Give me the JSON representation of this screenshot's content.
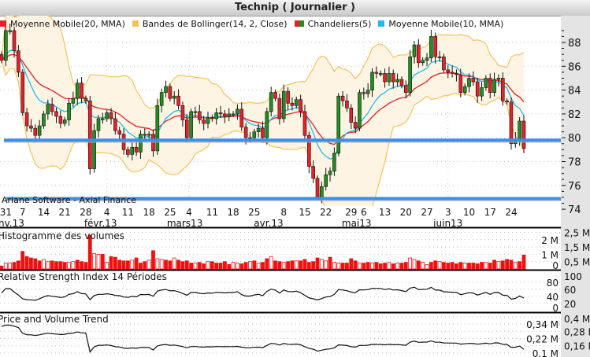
{
  "title": "Technip  ( Journalier )",
  "legend": [
    {
      "label": "Moyenne Mobile(20, MMA)",
      "color": "#e8202a"
    },
    {
      "label": "Bandes de Bollinger(14, 2, Close)",
      "color": "#f8c25a"
    },
    {
      "label": "Chandeliers(5)",
      "color": "#e8202a",
      "color2": "#1f8f1f"
    },
    {
      "label": "Moyenne Mobile(10, MMA)",
      "color": "#22bbee"
    }
  ],
  "watermark": "Ariane Software - Axial Finance",
  "panels": {
    "volume_title": "Histogramme des volumes",
    "rsi_title": "Relative Strength Index 14 Périodes",
    "pvt_title": "Price and Volume Trend"
  },
  "chart_data": {
    "type": "candlestick",
    "title": "Technip  ( Journalier )",
    "price_axis": {
      "range": [
        74,
        89
      ],
      "ticks": [
        "88",
        "86",
        "84",
        "82",
        "80",
        "78",
        "76",
        "74"
      ]
    },
    "closes": [
      86.5,
      89,
      89,
      87.3,
      85.5,
      82.1,
      81,
      80.8,
      80.2,
      81,
      82,
      82.8,
      82.2,
      81.8,
      81.2,
      81.5,
      82.9,
      83.3,
      84.6,
      83.3,
      83.1,
      77.4,
      80.6,
      81.6,
      81.6,
      82.1,
      81.6,
      80.6,
      80.3,
      79,
      78.6,
      79.2,
      78.8,
      80.3,
      80.2,
      80.3,
      78.9,
      82.7,
      83.8,
      84.3,
      83.3,
      83.5,
      82.7,
      81.5,
      80,
      82.2,
      82.2,
      81.5,
      81.2,
      81.7,
      81.6,
      82.1,
      82,
      81.8,
      82,
      82,
      82.4,
      80.9,
      80,
      80,
      80.5,
      80.8,
      80,
      82.2,
      83.8,
      83.3,
      81.6,
      83.9,
      82.9,
      82.7,
      83.2,
      82.2,
      80.2,
      77.6,
      76.6,
      75,
      75.9,
      76.9,
      77.2,
      78.7,
      83.5,
      83.1,
      82.5,
      81.3,
      80.8,
      83.8,
      83.7,
      84,
      85.5,
      85.4,
      85.4,
      84.7,
      85.4,
      84.7,
      84.9,
      84.4,
      83.8,
      86.8,
      87.8,
      86.3,
      86.5,
      86.7,
      88.5,
      86.8,
      86.8,
      85.7,
      85.5,
      85.4,
      85.3,
      83.8,
      84.3,
      85,
      84.7,
      83.5,
      84.2,
      85,
      83.8,
      84.9,
      85,
      83.1,
      83,
      79.5,
      79.9,
      81.4,
      79.1
    ],
    "volumes_millions": [
      0.2,
      0.4,
      0.4,
      0.45,
      0.55,
      1.2,
      0.85,
      0.75,
      0.7,
      0.55,
      0.65,
      0.5,
      0.55,
      0.5,
      0.5,
      0.45,
      0.45,
      0.5,
      0.6,
      0.5,
      0.45,
      2.3,
      1.05,
      1.0,
      1.0,
      0.45,
      0.85,
      0.8,
      0.6,
      0.55,
      0.55,
      0.6,
      0.75,
      0.4,
      0.5,
      0.6,
      1.25,
      0.7,
      0.65,
      0.6,
      0.55,
      0.75,
      0.6,
      0.5,
      0.55,
      0.4,
      0.4,
      0.45,
      0.35,
      0.5,
      0.5,
      0.4,
      0.4,
      0.5,
      0.3,
      0.45,
      0.4,
      0.35,
      0.45,
      0.5,
      0.55,
      0.4,
      0.45,
      0.7,
      0.85,
      0.55,
      0.5,
      0.45,
      0.5,
      0.55,
      0.55,
      0.55,
      0.65,
      0.45,
      0.5,
      0.75,
      0.65,
      0.55,
      0.8,
      0.45,
      0.4,
      0.4,
      0.4,
      0.7,
      0.55,
      0.4,
      0.4,
      0.45,
      0.4,
      0.45,
      0.35,
      0.4,
      0.45,
      0.35,
      0.4,
      0.4,
      0.45,
      0.75,
      0.65,
      0.55,
      0.45,
      0.3,
      0.45,
      0.55,
      0.5,
      0.45,
      0.4,
      0.45,
      0.35,
      0.45,
      0.4,
      0.4,
      0.4,
      0.35,
      0.45,
      0.45,
      0.4,
      0.6,
      0.5,
      0.55,
      0.65,
      0.6,
      0.45,
      0.5,
      0.95
    ],
    "support_lines": [
      79.8,
      74.9
    ],
    "day_labels": [
      {
        "text": "31",
        "i": 1
      },
      {
        "text": "7",
        "i": 5
      },
      {
        "text": "14",
        "i": 10
      },
      {
        "text": "21",
        "i": 15
      },
      {
        "text": "28",
        "i": 20
      },
      {
        "text": "4",
        "i": 25
      },
      {
        "text": "11",
        "i": 30
      },
      {
        "text": "18",
        "i": 35
      },
      {
        "text": "25",
        "i": 40
      },
      {
        "text": "4",
        "i": 44.5
      },
      {
        "text": "11",
        "i": 50
      },
      {
        "text": "18",
        "i": 55
      },
      {
        "text": "25",
        "i": 60
      },
      {
        "text": "8",
        "i": 67
      },
      {
        "text": "15",
        "i": 72
      },
      {
        "text": "22",
        "i": 77
      },
      {
        "text": "29",
        "i": 83
      },
      {
        "text": "6",
        "i": 86
      },
      {
        "text": "13",
        "i": 91
      },
      {
        "text": "20",
        "i": 96
      },
      {
        "text": "27",
        "i": 101
      },
      {
        "text": "3",
        "i": 106
      },
      {
        "text": "10",
        "i": 111
      },
      {
        "text": "17",
        "i": 116
      },
      {
        "text": "24",
        "i": 121
      }
    ],
    "month_labels": [
      {
        "text": "nv.13",
        "i": 1
      },
      {
        "text": "févr.13",
        "i": 23.5
      },
      {
        "text": "mars13",
        "i": 43.5
      },
      {
        "text": "avr.13",
        "i": 63.4
      },
      {
        "text": "mai13",
        "i": 84.3
      },
      {
        "text": "juin13",
        "i": 106
      }
    ],
    "volume_axis": {
      "range": [
        0,
        2.5
      ],
      "ticks": [
        {
          "v": 2.5,
          "t": "2,5 M"
        },
        {
          "v": 2,
          "t": "2 M"
        },
        {
          "v": 1.5,
          "t": "1,5 M"
        },
        {
          "v": 1,
          "t": "1 M"
        },
        {
          "v": 0.5,
          "t": "0,5 M"
        },
        {
          "v": 0,
          "t": "0"
        }
      ]
    },
    "rsi_axis": {
      "range": [
        0,
        100
      ],
      "ticks": [
        {
          "v": 100,
          "t": "100"
        },
        {
          "v": 80,
          "t": "80"
        },
        {
          "v": 60,
          "t": "60"
        },
        {
          "v": 40,
          "t": "40"
        },
        {
          "v": 20,
          "t": "20"
        },
        {
          "v": 0,
          "t": "0"
        }
      ]
    },
    "pvt_axis": {
      "range": [
        0.1,
        0.4
      ],
      "ticks": [
        {
          "v": 0.4,
          "t": "0,4 M"
        },
        {
          "v": 0.34,
          "t": "0,34 M"
        },
        {
          "v": 0.28,
          "t": "0,28 M"
        },
        {
          "v": 0.22,
          "t": "0,22 M"
        },
        {
          "v": 0.16,
          "t": "0,16 M"
        },
        {
          "v": 0.1,
          "t": "0,1 M"
        }
      ]
    },
    "pvt_start_millions": 0.32
  },
  "colors": {
    "up": "#1f8f1f",
    "down": "#e8202a",
    "ma20": "#e8202a",
    "ma10": "#22bbee",
    "band": "#f8c25a",
    "band_fill": "#fdf4e4",
    "support": "#3d8ee8",
    "axis_bg": "#e4e4e4",
    "volume": "#f01010"
  }
}
